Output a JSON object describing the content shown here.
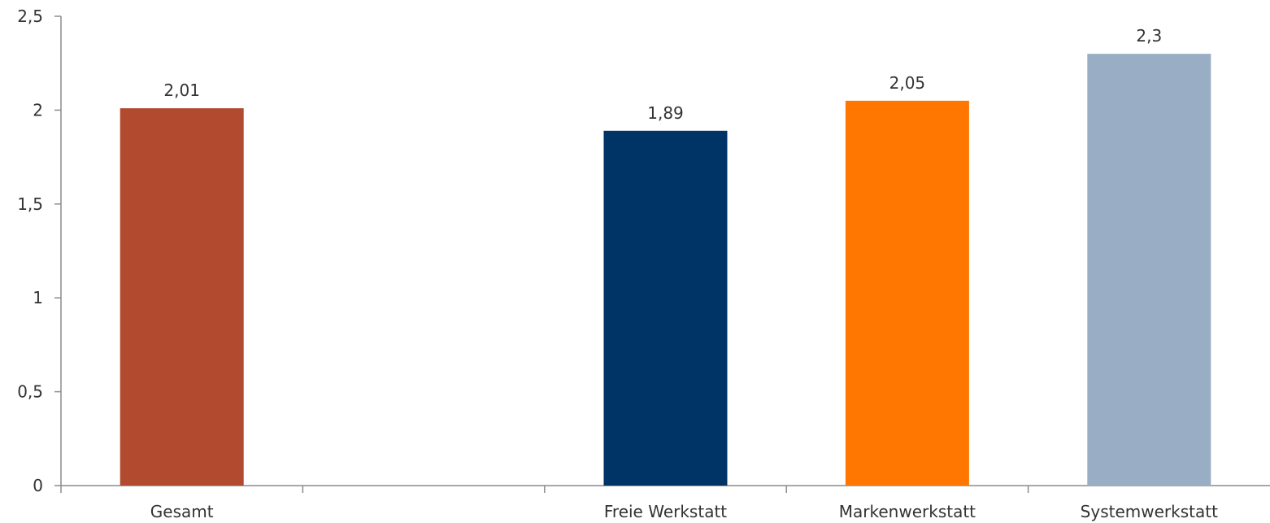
{
  "chart_data": {
    "type": "bar",
    "categories": [
      "Gesamt",
      "",
      "Freie Werkstatt",
      "Markenwerkstatt",
      "Systemwerkstatt"
    ],
    "values": [
      2.01,
      null,
      1.89,
      2.05,
      2.3
    ],
    "value_labels": [
      "2,01",
      "",
      "1,89",
      "2,05",
      "2,3"
    ],
    "colors": [
      "#b24a30",
      null,
      "#003366",
      "#ff7700",
      "#99aec4"
    ],
    "ylim": [
      0,
      2.5
    ],
    "yticks": [
      0,
      0.5,
      1,
      1.5,
      2,
      2.5
    ],
    "ytick_labels": [
      "0",
      "0,5",
      "1",
      "1,5",
      "2",
      "2,5"
    ],
    "grid": false,
    "legend": "none"
  }
}
